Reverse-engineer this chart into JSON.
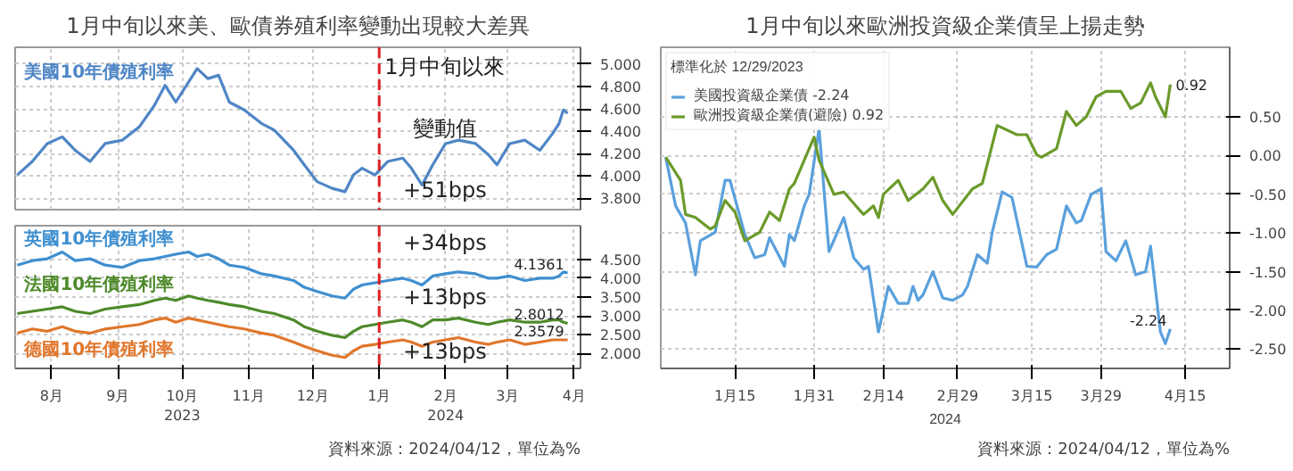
{
  "chart_data": [
    {
      "type": "line",
      "title": "1月中旬以來美、歐債券殖利率變動出現較大差異",
      "tick_labels": "y",
      "grid": true,
      "legend": false,
      "x": [
        "2023-07-30",
        "2023-08-06",
        "2023-08-13",
        "2023-08-20",
        "2023-08-26",
        "2023-09-02",
        "2023-09-09",
        "2023-09-17",
        "2023-09-25",
        "2023-10-02",
        "2023-10-07",
        "2023-10-12",
        "2023-10-18",
        "2023-10-22",
        "2023-10-27",
        "2023-11-01",
        "2023-11-06",
        "2023-11-13",
        "2023-11-21",
        "2023-11-27",
        "2023-12-06",
        "2023-12-11",
        "2023-12-17",
        "2023-12-24",
        "2023-12-30",
        "2024-01-03",
        "2024-01-07",
        "2024-01-13",
        "2024-01-19",
        "2024-01-26",
        "2024-01-30",
        "2024-02-04",
        "2024-02-09",
        "2024-02-15",
        "2024-02-21",
        "2024-02-29",
        "2024-03-06",
        "2024-03-10",
        "2024-03-16",
        "2024-03-23",
        "2024-03-30",
        "2024-04-05",
        "2024-04-08",
        "2024-04-10",
        "2024-04-12"
      ],
      "xlim": [
        "2023-07-29",
        "2024-04-18"
      ],
      "xticks": [
        {
          "value": "2023-08-15",
          "label": null
        },
        {
          "value": "2023-09-15",
          "label": null
        },
        {
          "value": "2023-10-15",
          "label": null
        },
        {
          "value": "2023-11-15",
          "label": null
        },
        {
          "value": "2023-12-15",
          "label": null
        },
        {
          "value": "2024-01-15",
          "label": null
        },
        {
          "value": "2024-02-15",
          "label": null
        },
        {
          "value": "2024-03-15",
          "label": null
        },
        {
          "value": "2024-04-15",
          "label": null
        }
      ],
      "ylim": [
        3.7,
        5.15
      ],
      "yticks": [
        {
          "value": 3.8,
          "label": "3.800"
        },
        {
          "value": 4.0,
          "label": "4.000"
        },
        {
          "value": 4.2,
          "label": "4.200"
        },
        {
          "value": 4.4,
          "label": "4.400"
        },
        {
          "value": 4.6,
          "label": "4.600"
        },
        {
          "value": 4.8,
          "label": "4.800"
        },
        {
          "value": 5.0,
          "label": "5.000"
        }
      ],
      "series": [
        {
          "name": "美國10年債殖利率",
          "color": "#4f86c6",
          "values": [
            4.01,
            4.13,
            4.29,
            4.35,
            4.23,
            4.13,
            4.29,
            4.32,
            4.44,
            4.63,
            4.81,
            4.66,
            4.84,
            4.96,
            4.87,
            4.9,
            4.66,
            4.59,
            4.47,
            4.41,
            4.23,
            4.1,
            3.95,
            3.89,
            3.86,
            4.01,
            4.07,
            4.01,
            4.13,
            4.16,
            4.07,
            3.92,
            4.1,
            4.29,
            4.32,
            4.29,
            4.19,
            4.1,
            4.29,
            4.32,
            4.23,
            4.38,
            4.47,
            4.59,
            4.56
          ]
        }
      ],
      "ref_lines": [
        {
          "axis": "x",
          "value": "2024-01-15",
          "color": "#e02020",
          "line_style": "dashed"
        }
      ],
      "annotations": [
        "1月中旬以來",
        "變動值",
        "+51bps"
      ]
    },
    {
      "type": "line",
      "grid": true,
      "legend": false,
      "x": [
        "2023-07-30",
        "2023-08-06",
        "2023-08-13",
        "2023-08-20",
        "2023-08-26",
        "2023-09-02",
        "2023-09-09",
        "2023-09-17",
        "2023-09-25",
        "2023-10-02",
        "2023-10-07",
        "2023-10-12",
        "2023-10-18",
        "2023-10-22",
        "2023-10-27",
        "2023-11-01",
        "2023-11-06",
        "2023-11-13",
        "2023-11-21",
        "2023-11-27",
        "2023-12-06",
        "2023-12-11",
        "2023-12-17",
        "2023-12-24",
        "2023-12-30",
        "2024-01-03",
        "2024-01-07",
        "2024-01-13",
        "2024-01-19",
        "2024-01-26",
        "2024-01-30",
        "2024-02-04",
        "2024-02-09",
        "2024-02-15",
        "2024-02-21",
        "2024-02-29",
        "2024-03-06",
        "2024-03-10",
        "2024-03-16",
        "2024-03-23",
        "2024-03-30",
        "2024-04-05",
        "2024-04-08",
        "2024-04-10",
        "2024-04-12"
      ],
      "xlim": [
        "2023-07-29",
        "2024-04-18"
      ],
      "xticks": [
        {
          "value": "2023-08-15",
          "label": "8月"
        },
        {
          "value": "2023-09-15",
          "label": "9月"
        },
        {
          "value": "2023-10-15",
          "label": "10月\n2023"
        },
        {
          "value": "2023-11-15",
          "label": "11月"
        },
        {
          "value": "2023-12-15",
          "label": "12月"
        },
        {
          "value": "2024-01-15",
          "label": "1月"
        },
        {
          "value": "2024-02-15",
          "label": "2月\n2024"
        },
        {
          "value": "2024-03-15",
          "label": "3月"
        },
        {
          "value": "2024-04-15",
          "label": "4月"
        }
      ],
      "ylim": [
        1.6,
        5.4
      ],
      "yticks": [
        {
          "value": 2.0,
          "label": "2.000"
        },
        {
          "value": 2.5,
          "label": "2.500"
        },
        {
          "value": 3.0,
          "label": "3.000"
        },
        {
          "value": 3.5,
          "label": "3.500"
        },
        {
          "value": 4.0,
          "label": "4.000"
        },
        {
          "value": 4.5,
          "label": "4.500"
        }
      ],
      "series": [
        {
          "name": "英國10年債殖利率",
          "color": "#3f8fd0",
          "values": [
            4.35,
            4.47,
            4.52,
            4.7,
            4.47,
            4.52,
            4.35,
            4.29,
            4.47,
            4.52,
            4.58,
            4.64,
            4.7,
            4.58,
            4.64,
            4.52,
            4.35,
            4.29,
            4.12,
            4.06,
            3.94,
            3.76,
            3.65,
            3.53,
            3.47,
            3.71,
            3.82,
            3.88,
            3.94,
            4.0,
            3.94,
            3.82,
            4.06,
            4.12,
            4.17,
            4.12,
            4.0,
            4.0,
            4.06,
            3.94,
            4.0,
            4.0,
            4.06,
            4.17,
            4.14
          ]
        },
        {
          "name": "法國10年債殖利率",
          "color": "#4e8a2a",
          "values": [
            3.06,
            3.12,
            3.18,
            3.24,
            3.12,
            3.06,
            3.18,
            3.24,
            3.3,
            3.41,
            3.47,
            3.41,
            3.53,
            3.47,
            3.41,
            3.36,
            3.3,
            3.24,
            3.12,
            3.06,
            2.89,
            2.71,
            2.59,
            2.48,
            2.42,
            2.59,
            2.71,
            2.77,
            2.83,
            2.89,
            2.83,
            2.71,
            2.89,
            2.89,
            2.94,
            2.83,
            2.77,
            2.83,
            2.89,
            2.83,
            2.83,
            2.89,
            2.89,
            2.83,
            2.8
          ]
        },
        {
          "name": "德國10年債殖利率",
          "color": "#e0762c",
          "values": [
            2.54,
            2.65,
            2.59,
            2.71,
            2.59,
            2.54,
            2.65,
            2.71,
            2.77,
            2.89,
            2.94,
            2.83,
            2.94,
            2.89,
            2.83,
            2.77,
            2.71,
            2.65,
            2.54,
            2.48,
            2.3,
            2.19,
            2.07,
            1.95,
            1.89,
            2.07,
            2.19,
            2.24,
            2.3,
            2.36,
            2.3,
            2.19,
            2.3,
            2.36,
            2.42,
            2.3,
            2.24,
            2.3,
            2.36,
            2.24,
            2.3,
            2.36,
            2.36,
            2.36,
            2.36
          ]
        }
      ],
      "ref_lines": [
        {
          "axis": "x",
          "value": "2024-01-15",
          "color": "#e02020",
          "line_style": "dashed"
        }
      ],
      "annotations": [
        "+34bps",
        "+13bps",
        "+13bps",
        {
          "text": "4.1361",
          "x": "2024-04-12",
          "y": 4.14
        },
        {
          "text": "2.8012",
          "x": "2024-04-12",
          "y": 2.8
        },
        {
          "text": "2.3579",
          "x": "2024-04-12",
          "y": 2.36
        },
        "資料來源：2024/04/12，單位為%"
      ]
    },
    {
      "type": "line",
      "title": "1月中旬以來歐洲投資級企業債呈上揚走勢",
      "grid": true,
      "legend": "top left",
      "legend_title": "標準化於 12/29/2023",
      "xlabel": "2024",
      "xlim": [
        "2023-12-31",
        "2024-04-24"
      ],
      "xticks": [
        {
          "value": "2024-01-15",
          "label": "1月15"
        },
        {
          "value": "2024-01-31",
          "label": "1月31"
        },
        {
          "value": "2024-02-14",
          "label": "2月14"
        },
        {
          "value": "2024-02-29",
          "label": "2月29"
        },
        {
          "value": "2024-03-15",
          "label": "3月15"
        },
        {
          "value": "2024-03-29",
          "label": "3月29"
        },
        {
          "value": "2024-04-15",
          "label": "4月15"
        }
      ],
      "ylim": [
        -2.75,
        1.4
      ],
      "yticks": [
        {
          "value": -2.5,
          "label": "-2.50"
        },
        {
          "value": -2.0,
          "label": "-2.00"
        },
        {
          "value": -1.5,
          "label": "-1.50"
        },
        {
          "value": -1.0,
          "label": "-1.00"
        },
        {
          "value": -0.5,
          "label": "-0.50"
        },
        {
          "value": 0,
          "label": "0.00"
        },
        {
          "value": 0.5,
          "label": "0.50"
        }
      ],
      "series": [
        {
          "name": "美國投資級企業債 -2.24",
          "color": "#5aa0dc",
          "x": [
            "2024-01-01",
            "2024-01-03",
            "2024-01-05",
            "2024-01-07",
            "2024-01-08",
            "2024-01-11",
            "2024-01-13",
            "2024-01-14",
            "2024-01-17",
            "2024-01-19",
            "2024-01-21",
            "2024-01-22",
            "2024-01-25",
            "2024-01-26",
            "2024-01-27",
            "2024-01-29",
            "2024-01-30",
            "2024-02-01",
            "2024-02-03",
            "2024-02-06",
            "2024-02-08",
            "2024-02-10",
            "2024-02-11",
            "2024-02-13",
            "2024-02-14",
            "2024-02-15",
            "2024-02-17",
            "2024-02-19",
            "2024-02-20",
            "2024-02-21",
            "2024-02-22",
            "2024-02-24",
            "2024-02-26",
            "2024-02-28",
            "2024-03-01",
            "2024-03-02",
            "2024-03-04",
            "2024-03-06",
            "2024-03-07",
            "2024-03-09",
            "2024-03-11",
            "2024-03-14",
            "2024-03-16",
            "2024-03-18",
            "2024-03-20",
            "2024-03-22",
            "2024-03-24",
            "2024-03-25",
            "2024-03-27",
            "2024-03-29",
            "2024-03-30",
            "2024-04-01",
            "2024-04-03",
            "2024-04-05",
            "2024-04-07",
            "2024-04-08",
            "2024-04-10",
            "2024-04-11",
            "2024-04-12"
          ],
          "values": [
            -0.02,
            -0.65,
            -0.87,
            -1.54,
            -1.1,
            -0.99,
            -0.32,
            -0.32,
            -1.02,
            -1.32,
            -1.28,
            -1.06,
            -1.43,
            -1.02,
            -1.1,
            -0.65,
            -0.5,
            0.35,
            -1.24,
            -0.8,
            -1.32,
            -1.47,
            -1.43,
            -2.28,
            -1.99,
            -1.69,
            -1.91,
            -1.91,
            -1.69,
            -1.87,
            -1.8,
            -1.5,
            -1.84,
            -1.87,
            -1.8,
            -1.69,
            -1.28,
            -1.39,
            -0.99,
            -0.47,
            -0.54,
            -1.43,
            -1.44,
            -1.28,
            -1.21,
            -0.65,
            -0.87,
            -0.84,
            -0.5,
            -0.43,
            -1.24,
            -1.36,
            -1.1,
            -1.54,
            -1.5,
            -1.17,
            -2.28,
            -2.43,
            -2.24
          ]
        },
        {
          "name": "歐洲投資級企業債(避險) 0.92",
          "color": "#6b9a2a",
          "x": [
            "2024-01-01",
            "2024-01-04",
            "2024-01-05",
            "2024-01-07",
            "2024-01-10",
            "2024-01-11",
            "2024-01-13",
            "2024-01-15",
            "2024-01-17",
            "2024-01-20",
            "2024-01-22",
            "2024-01-24",
            "2024-01-26",
            "2024-01-27",
            "2024-01-29",
            "2024-01-31",
            "2024-02-01",
            "2024-02-04",
            "2024-02-06",
            "2024-02-09",
            "2024-02-10",
            "2024-02-12",
            "2024-02-13",
            "2024-02-14",
            "2024-02-17",
            "2024-02-19",
            "2024-02-22",
            "2024-02-24",
            "2024-02-26",
            "2024-02-28",
            "2024-03-03",
            "2024-03-05",
            "2024-03-08",
            "2024-03-12",
            "2024-03-14",
            "2024-03-16",
            "2024-03-17",
            "2024-03-20",
            "2024-03-22",
            "2024-03-24",
            "2024-03-26",
            "2024-03-28",
            "2024-03-30",
            "2024-04-02",
            "2024-04-04",
            "2024-04-06",
            "2024-04-08",
            "2024-04-09",
            "2024-04-11",
            "2024-04-12"
          ],
          "values": [
            -0.02,
            -0.32,
            -0.76,
            -0.8,
            -0.95,
            -0.91,
            -0.58,
            -0.73,
            -1.1,
            -0.99,
            -0.73,
            -0.84,
            -0.43,
            -0.36,
            -0.06,
            0.24,
            -0.06,
            -0.5,
            -0.47,
            -0.69,
            -0.76,
            -0.65,
            -0.8,
            -0.5,
            -0.32,
            -0.58,
            -0.43,
            -0.28,
            -0.58,
            -0.76,
            -0.43,
            -0.36,
            0.39,
            0.27,
            0.27,
            0.01,
            -0.02,
            0.09,
            0.57,
            0.39,
            0.5,
            0.76,
            0.83,
            0.83,
            0.61,
            0.68,
            0.94,
            0.76,
            0.5,
            0.92
          ]
        }
      ],
      "annotations": [
        {
          "text": "-2.24",
          "x": "2024-04-12",
          "y": -2.24
        },
        {
          "text": "0.92",
          "x": "2024-04-12",
          "y": 0.92
        },
        "資料來源：2024/04/12，單位為%"
      ]
    }
  ]
}
